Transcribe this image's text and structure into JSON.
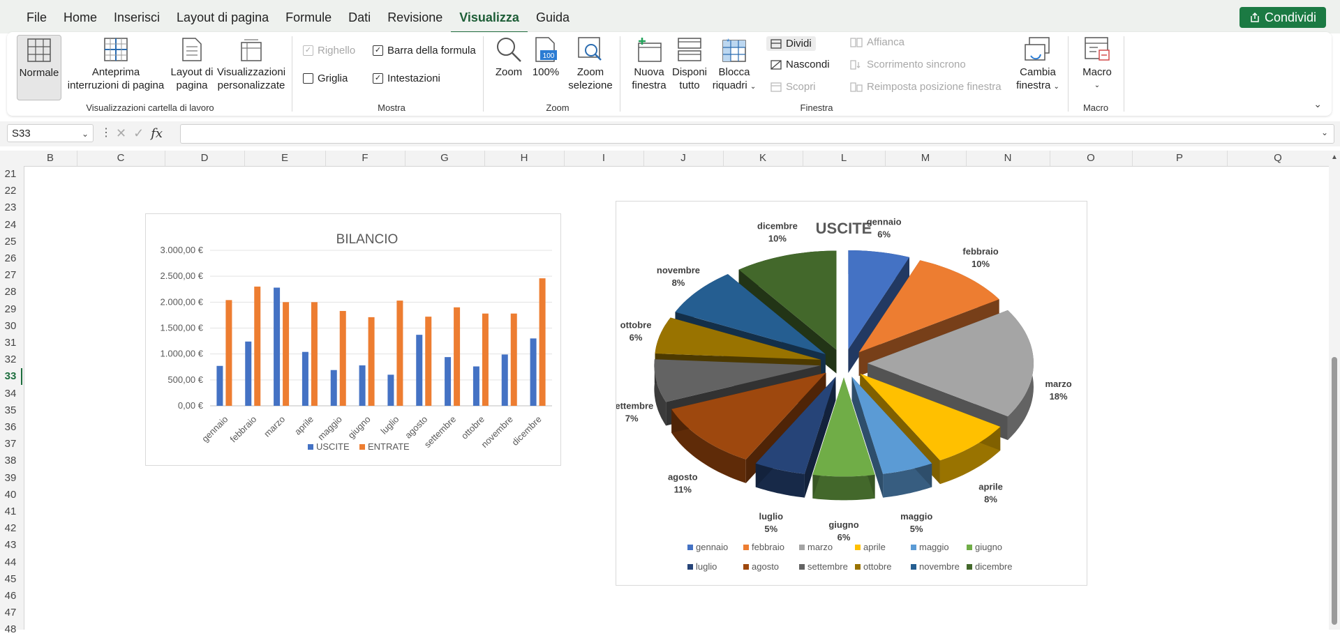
{
  "ribbon_tabs": [
    "File",
    "Home",
    "Inserisci",
    "Layout di pagina",
    "Formule",
    "Dati",
    "Revisione",
    "Visualizza",
    "Guida"
  ],
  "active_tab": "Visualizza",
  "share_label": "Condividi",
  "groups": {
    "workbook_views": {
      "label": "Visualizzazioni cartella di lavoro",
      "normal": "Normale",
      "page_break_1": "Anteprima",
      "page_break_2": "interruzioni di pagina",
      "page_layout_1": "Layout di",
      "page_layout_2": "pagina",
      "custom_1": "Visualizzazioni",
      "custom_2": "personalizzate"
    },
    "show": {
      "label": "Mostra",
      "ruler": "Righello",
      "formula_bar": "Barra della formula",
      "gridlines": "Griglia",
      "headings": "Intestazioni"
    },
    "zoom": {
      "label": "Zoom",
      "zoom": "Zoom",
      "hundred": "100%",
      "zoom_sel_1": "Zoom",
      "zoom_sel_2": "selezione"
    },
    "window": {
      "label": "Finestra",
      "new_1": "Nuova",
      "new_2": "finestra",
      "arrange_1": "Disponi",
      "arrange_2": "tutto",
      "freeze_1": "Blocca",
      "freeze_2": "riquadri",
      "split": "Dividi",
      "hide": "Nascondi",
      "unhide": "Scopri",
      "side_by_side": "Affianca",
      "sync_scroll": "Scorrimento sincrono",
      "reset_pos": "Reimposta posizione finestra",
      "switch_1": "Cambia",
      "switch_2": "finestra"
    },
    "macro": {
      "label": "Macro",
      "macro": "Macro"
    }
  },
  "name_box": "S33",
  "formula_value": "",
  "columns": [
    "B",
    "C",
    "D",
    "E",
    "F",
    "G",
    "H",
    "I",
    "J",
    "K",
    "L",
    "M",
    "N",
    "O",
    "P",
    "Q"
  ],
  "rows": [
    "21",
    "22",
    "23",
    "24",
    "25",
    "26",
    "27",
    "28",
    "29",
    "30",
    "31",
    "32",
    "33",
    "34",
    "35",
    "36",
    "37",
    "38",
    "39",
    "40",
    "41",
    "42",
    "43",
    "44",
    "45",
    "46",
    "47",
    "48"
  ],
  "active_row": "33",
  "chart_data": [
    {
      "type": "bar",
      "title": "BILANCIO",
      "categories": [
        "gennaio",
        "febbraio",
        "marzo",
        "aprile",
        "maggio",
        "giugno",
        "luglio",
        "agosto",
        "settembre",
        "ottobre",
        "novembre",
        "dicembre"
      ],
      "series": [
        {
          "name": "USCITE",
          "color": "#4472c4",
          "values": [
            770,
            1240,
            2280,
            1040,
            690,
            780,
            600,
            1370,
            940,
            760,
            990,
            1300
          ]
        },
        {
          "name": "ENTRATE",
          "color": "#ed7d31",
          "values": [
            2040,
            2300,
            2000,
            2000,
            1830,
            1710,
            2030,
            1720,
            1900,
            1780,
            1780,
            2460
          ]
        }
      ],
      "ylim": [
        0,
        3000
      ],
      "yticks": [
        "0,00 €",
        "500,00 €",
        "1.000,00 €",
        "1.500,00 €",
        "2.000,00 €",
        "2.500,00 €",
        "3.000,00 €"
      ],
      "legend": "bottom",
      "grid": true
    },
    {
      "type": "pie",
      "title": "USCITE",
      "slices": [
        {
          "label": "gennaio",
          "pct": "6%",
          "value": 6,
          "color": "#4472c4"
        },
        {
          "label": "febbraio",
          "pct": "10%",
          "value": 10,
          "color": "#ed7d31"
        },
        {
          "label": "marzo",
          "pct": "18%",
          "value": 18,
          "color": "#a5a5a5"
        },
        {
          "label": "aprile",
          "pct": "8%",
          "value": 8,
          "color": "#ffc000"
        },
        {
          "label": "maggio",
          "pct": "5%",
          "value": 5,
          "color": "#5b9bd5"
        },
        {
          "label": "giugno",
          "pct": "6%",
          "value": 6,
          "color": "#70ad47"
        },
        {
          "label": "luglio",
          "pct": "5%",
          "value": 5,
          "color": "#264478"
        },
        {
          "label": "agosto",
          "pct": "11%",
          "value": 11,
          "color": "#9e480e"
        },
        {
          "label": "settembre",
          "pct": "7%",
          "value": 7,
          "color": "#636363"
        },
        {
          "label": "ottobre",
          "pct": "6%",
          "value": 6,
          "color": "#997300"
        },
        {
          "label": "novembre",
          "pct": "8%",
          "value": 8,
          "color": "#255e91"
        },
        {
          "label": "dicembre",
          "pct": "10%",
          "value": 10,
          "color": "#43682b"
        }
      ],
      "legend": "bottom"
    }
  ]
}
